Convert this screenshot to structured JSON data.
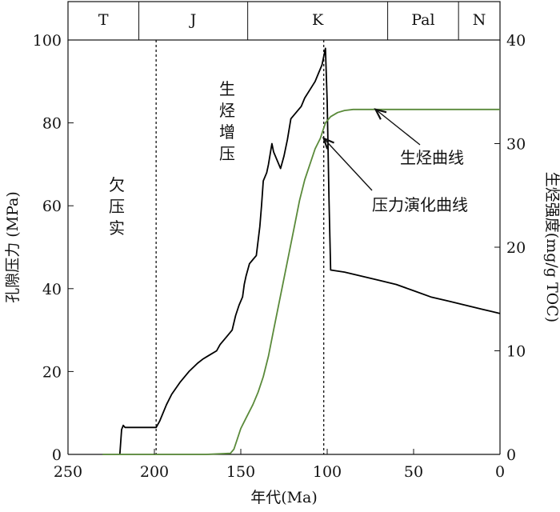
{
  "chart_data": {
    "type": "line",
    "x_axis": {
      "label": "年代(Ma)",
      "range": [
        250,
        0
      ],
      "reversed": true,
      "ticks": [
        250,
        200,
        150,
        100,
        50,
        0
      ]
    },
    "y_axis_left": {
      "label": "孔隙压力 (MPa)",
      "range": [
        0,
        100
      ],
      "ticks": [
        0,
        20,
        40,
        60,
        80,
        100
      ]
    },
    "y_axis_right": {
      "label": "生烃强度(mg/g TOC)",
      "range": [
        0,
        40
      ],
      "ticks": [
        0,
        10,
        20,
        30,
        40
      ]
    },
    "periods": [
      {
        "label": "T",
        "from": 250,
        "to": 209
      },
      {
        "label": "J",
        "from": 209,
        "to": 146
      },
      {
        "label": "K",
        "from": 146,
        "to": 65
      },
      {
        "label": "Pal",
        "from": 65,
        "to": 24
      },
      {
        "label": "N",
        "from": 24,
        "to": 0
      }
    ],
    "vertical_lines": [
      199,
      102
    ],
    "series": [
      {
        "name": "压力演化曲线",
        "axis": "left",
        "color": "#000000",
        "points": [
          [
            220,
            0
          ],
          [
            219,
            6
          ],
          [
            218,
            7
          ],
          [
            217,
            6.5
          ],
          [
            216,
            6.5
          ],
          [
            199,
            6.5
          ],
          [
            197,
            8
          ],
          [
            193,
            12
          ],
          [
            190,
            14.5
          ],
          [
            185,
            17.5
          ],
          [
            180,
            20
          ],
          [
            175,
            22
          ],
          [
            172,
            23
          ],
          [
            168,
            24
          ],
          [
            164,
            25
          ],
          [
            162,
            26.5
          ],
          [
            158,
            28.5
          ],
          [
            155,
            30
          ],
          [
            153,
            33.5
          ],
          [
            151,
            36
          ],
          [
            149,
            38
          ],
          [
            148,
            41
          ],
          [
            147,
            43
          ],
          [
            145,
            46
          ],
          [
            143,
            47
          ],
          [
            141,
            48
          ],
          [
            139,
            55
          ],
          [
            138,
            60
          ],
          [
            137,
            66
          ],
          [
            135,
            68
          ],
          [
            134,
            70
          ],
          [
            132,
            75
          ],
          [
            131,
            73
          ],
          [
            128,
            70
          ],
          [
            127,
            69
          ],
          [
            125,
            72
          ],
          [
            123,
            76
          ],
          [
            121,
            81
          ],
          [
            119,
            82
          ],
          [
            117,
            83
          ],
          [
            115,
            84
          ],
          [
            113,
            86
          ],
          [
            110,
            88
          ],
          [
            107,
            90
          ],
          [
            105,
            92
          ],
          [
            103,
            94
          ],
          [
            101,
            98
          ],
          [
            100,
            85
          ],
          [
            99,
            62
          ],
          [
            98,
            44.5
          ],
          [
            95,
            44.3
          ],
          [
            90,
            44
          ],
          [
            80,
            43
          ],
          [
            70,
            42
          ],
          [
            60,
            41
          ],
          [
            50,
            39.5
          ],
          [
            40,
            38
          ],
          [
            30,
            37
          ],
          [
            20,
            36
          ],
          [
            10,
            35
          ],
          [
            5,
            34.5
          ],
          [
            0,
            34
          ]
        ]
      },
      {
        "name": "生烃曲线",
        "axis": "right",
        "color": "#5a8a3a",
        "points": [
          [
            230,
            0
          ],
          [
            200,
            0
          ],
          [
            170,
            0
          ],
          [
            156,
            0.1
          ],
          [
            154,
            0.5
          ],
          [
            152,
            1.5
          ],
          [
            150,
            2.5
          ],
          [
            147,
            3.5
          ],
          [
            143,
            4.8
          ],
          [
            140,
            6
          ],
          [
            137,
            7.5
          ],
          [
            134,
            9.5
          ],
          [
            131,
            12
          ],
          [
            128,
            14.5
          ],
          [
            125,
            17
          ],
          [
            122,
            19.5
          ],
          [
            119,
            22
          ],
          [
            116,
            24.5
          ],
          [
            113,
            26.5
          ],
          [
            110,
            28
          ],
          [
            107,
            29.5
          ],
          [
            104,
            30.5
          ],
          [
            101,
            32
          ],
          [
            98,
            32.6
          ],
          [
            94,
            33
          ],
          [
            90,
            33.2
          ],
          [
            85,
            33.3
          ],
          [
            80,
            33.3
          ],
          [
            50,
            33.3
          ],
          [
            20,
            33.3
          ],
          [
            0,
            33.3
          ]
        ]
      }
    ],
    "annotations": [
      {
        "text": "欠压实",
        "vertical": true
      },
      {
        "text": "生烃增压",
        "vertical": true
      },
      {
        "text": "生烃曲线",
        "arrow_to": [
          72,
          33.3
        ],
        "axis": "right"
      },
      {
        "text": "压力演化曲线",
        "arrow_to": [
          102,
          30.5
        ],
        "axis": "right"
      }
    ]
  }
}
